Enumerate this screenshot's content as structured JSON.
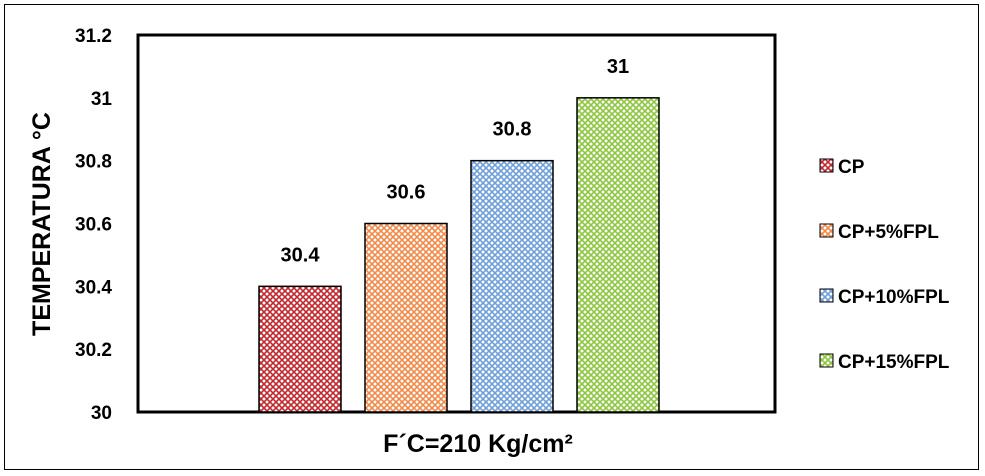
{
  "chart_data": {
    "type": "bar",
    "title": "",
    "xlabel": "F´C=210 Kg/cm²",
    "ylabel": "TEMPERATURA °C",
    "ylim": [
      30,
      31.2
    ],
    "yticks": [
      "30",
      "30.2",
      "30.4",
      "30.6",
      "30.8",
      "31",
      "31.2"
    ],
    "grid": false,
    "legend_position": "right",
    "series": [
      {
        "name": "CP",
        "value": 30.4,
        "label": "30.4",
        "color": "#c0282e"
      },
      {
        "name": "CP+5%FPL",
        "value": 30.6,
        "label": "30.6",
        "color": "#f08a4b"
      },
      {
        "name": "CP+10%FPL",
        "value": 30.8,
        "label": "30.8",
        "color": "#6f9fd8"
      },
      {
        "name": "CP+15%FPL",
        "value": 31,
        "label": "31",
        "color": "#8cc63f"
      }
    ]
  }
}
